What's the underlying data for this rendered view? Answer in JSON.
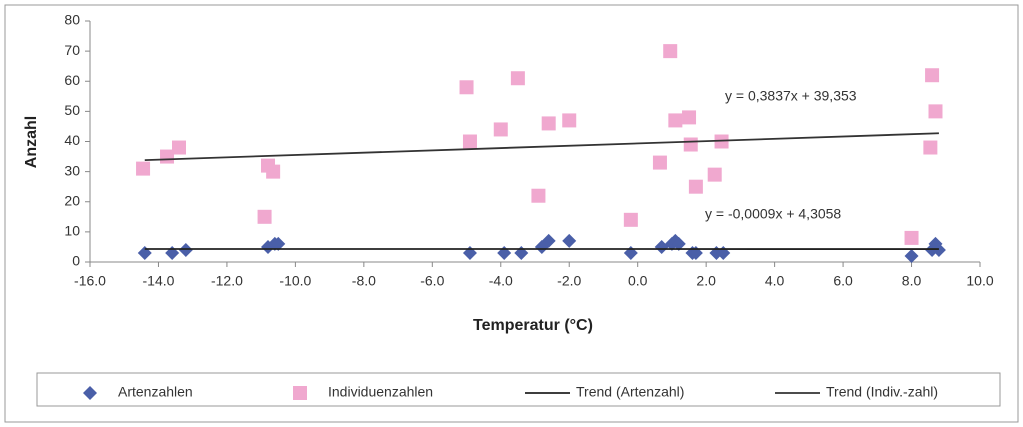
{
  "chart_data": {
    "type": "scatter",
    "xlabel": "Temperatur (°C)",
    "ylabel": "Anzahl",
    "xlim": [
      -16,
      10
    ],
    "ylim": [
      0,
      80
    ],
    "xticks": [
      {
        "value": -16,
        "label": "-16.0"
      },
      {
        "value": -14,
        "label": "-14.0"
      },
      {
        "value": -12,
        "label": "-12.0"
      },
      {
        "value": -10,
        "label": "-10.0"
      },
      {
        "value": -8,
        "label": "-8.0"
      },
      {
        "value": -6,
        "label": "-6.0"
      },
      {
        "value": -4,
        "label": "-4.0"
      },
      {
        "value": -2,
        "label": "-2.0"
      },
      {
        "value": 0,
        "label": "0.0"
      },
      {
        "value": 2,
        "label": "2.0"
      },
      {
        "value": 4,
        "label": "4.0"
      },
      {
        "value": 6,
        "label": "6.0"
      },
      {
        "value": 8,
        "label": "8.0"
      },
      {
        "value": 10,
        "label": "10.0"
      }
    ],
    "yticks": [
      0,
      10,
      20,
      30,
      40,
      50,
      60,
      70,
      80
    ],
    "grid": false,
    "legend": "bottom",
    "series": [
      {
        "name": "Artenzahlen",
        "marker": "diamond",
        "color": "#4a5fa8",
        "x": [
          -14.4,
          -13.6,
          -13.2,
          -10.8,
          -10.6,
          -10.5,
          -4.9,
          -3.9,
          -3.4,
          -2.8,
          -2.6,
          -2.0,
          -0.2,
          0.7,
          1.0,
          1.1,
          1.2,
          1.6,
          1.7,
          2.3,
          2.5,
          8.0,
          8.6,
          8.7,
          8.8
        ],
        "values": [
          3,
          3,
          4,
          5,
          6,
          6,
          3,
          3,
          3,
          5,
          7,
          7,
          3,
          5,
          6,
          7,
          6,
          3,
          3,
          3,
          3,
          2,
          4,
          6,
          4
        ]
      },
      {
        "name": "Individuenzahlen",
        "marker": "square",
        "color": "#f0a8cf",
        "x": [
          -14.45,
          -13.75,
          -13.4,
          -10.9,
          -10.8,
          -10.65,
          -5.0,
          -4.9,
          -4.0,
          -3.5,
          -2.9,
          -2.6,
          -2.0,
          -0.2,
          0.65,
          0.95,
          1.1,
          1.5,
          1.55,
          1.7,
          2.25,
          2.45,
          8.0,
          8.55,
          8.6,
          8.7
        ],
        "values": [
          31,
          35,
          38,
          15,
          32,
          30,
          58,
          40,
          44,
          61,
          22,
          46,
          47,
          14,
          33,
          70,
          47,
          48,
          39,
          25,
          29,
          40,
          8,
          38,
          62,
          50
        ]
      },
      {
        "name": "Trend (Artenzahl)",
        "marker": "line",
        "color": "#222222",
        "x": [
          -14.4,
          8.8
        ],
        "values": [
          4.319,
          4.298
        ]
      },
      {
        "name": "Trend (Indiv.-zahl)",
        "marker": "line",
        "color": "#333333",
        "x": [
          -14.4,
          8.8
        ],
        "values": [
          33.83,
          42.73
        ]
      }
    ],
    "annotations": [
      "y = 0,3837x + 39,353",
      "y = -0,0009x + 4,3058"
    ]
  }
}
